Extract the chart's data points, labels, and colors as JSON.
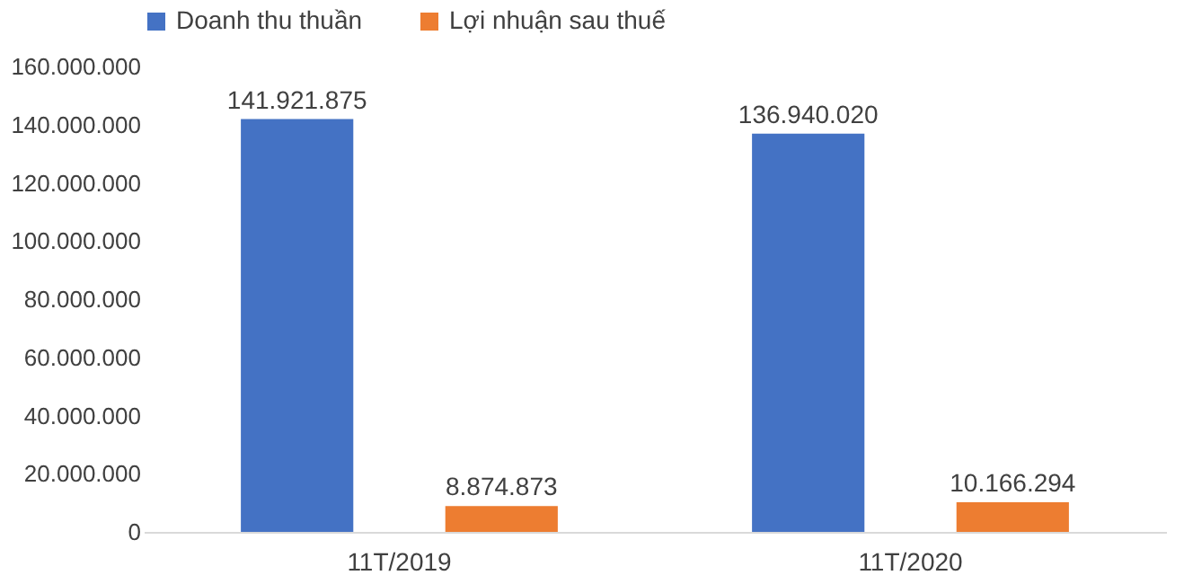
{
  "chart_data": {
    "type": "bar",
    "categories": [
      "11T/2019",
      "11T/2020"
    ],
    "series": [
      {
        "name": "Doanh thu thuần",
        "color": "#4472c4",
        "values": [
          141921875,
          136940020
        ],
        "value_labels": [
          "141.921.875",
          "136.940.020"
        ]
      },
      {
        "name": "Lợi nhuận sau thuế",
        "color": "#ed7d31",
        "values": [
          8874873,
          10166294
        ],
        "value_labels": [
          "8.874.873",
          "10.166.294"
        ]
      }
    ],
    "ylim": [
      0,
      160000000
    ],
    "yticks": [
      {
        "value": 0,
        "label": "0"
      },
      {
        "value": 20000000,
        "label": "20.000.000"
      },
      {
        "value": 40000000,
        "label": "40.000.000"
      },
      {
        "value": 60000000,
        "label": "60.000.000"
      },
      {
        "value": 80000000,
        "label": "80.000.000"
      },
      {
        "value": 100000000,
        "label": "100.000.000"
      },
      {
        "value": 120000000,
        "label": "120.000.000"
      },
      {
        "value": 140000000,
        "label": "140.000.000"
      },
      {
        "value": 160000000,
        "label": "160.000.000"
      }
    ],
    "grid": false,
    "legend": "top"
  }
}
